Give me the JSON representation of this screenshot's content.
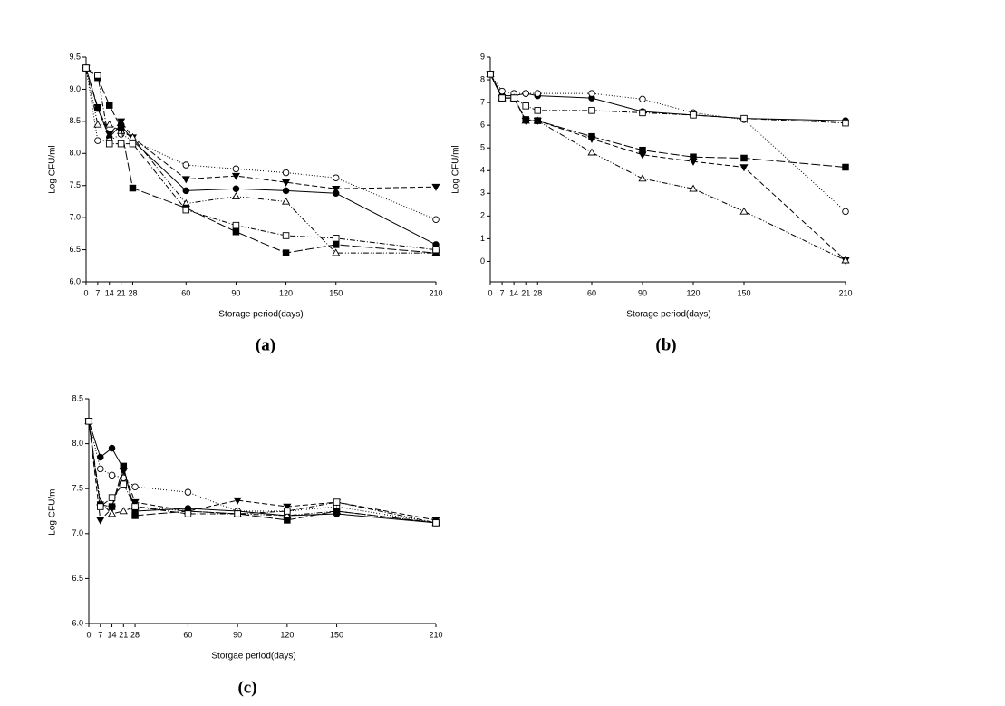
{
  "chart_data": [
    {
      "type": "line",
      "caption": "(a)",
      "xlabel": "Storage period(days)",
      "ylabel": "Log CFU/ml",
      "x": [
        0,
        7,
        14,
        21,
        28,
        60,
        90,
        120,
        150,
        210
      ],
      "xlim": [
        0,
        210
      ],
      "xticks": [
        0,
        7,
        14,
        21,
        28,
        60,
        90,
        120,
        150,
        210
      ],
      "ylim": [
        6,
        9.5
      ],
      "yticks": [
        {
          "value": 6,
          "label": "6.0"
        },
        6.5,
        {
          "value": 7,
          "label": "7.0"
        },
        7.5,
        {
          "value": 8,
          "label": "8.0"
        },
        8.5,
        {
          "value": 9,
          "label": "9.0"
        },
        9.5
      ],
      "series": [
        {
          "color": "#000000",
          "marker": "filled-circle",
          "line_style": "solid",
          "values": [
            9.33,
            8.7,
            8.25,
            8.45,
            8.2,
            7.42,
            7.45,
            7.42,
            7.38,
            6.58
          ]
        },
        {
          "color": "#000000",
          "marker": "open-circle",
          "line_style": "dotted",
          "values": [
            9.33,
            8.2,
            8.2,
            8.3,
            8.2,
            7.82,
            7.76,
            7.7,
            7.62,
            6.97
          ]
        },
        {
          "color": "#000000",
          "marker": "filled-triangle-down",
          "line_style": "dashed",
          "values": [
            9.33,
            8.72,
            8.3,
            8.5,
            8.25,
            7.6,
            7.65,
            7.55,
            7.45,
            7.48
          ]
        },
        {
          "color": "#000000",
          "marker": "open-triangle-up",
          "line_style": "dash-dot-dot",
          "values": [
            9.33,
            8.45,
            8.45,
            8.35,
            8.25,
            7.22,
            7.33,
            7.25,
            6.45,
            6.45
          ]
        },
        {
          "color": "#000000",
          "marker": "filled-square",
          "line_style": "long-dash",
          "values": [
            9.33,
            9.18,
            8.75,
            8.4,
            7.46,
            7.15,
            6.78,
            6.45,
            6.58,
            6.45
          ]
        },
        {
          "color": "#000000",
          "marker": "open-square",
          "line_style": "dash-dot",
          "values": [
            9.33,
            9.22,
            8.15,
            8.15,
            8.15,
            7.12,
            6.88,
            6.72,
            6.68,
            6.5
          ]
        }
      ]
    },
    {
      "type": "line",
      "caption": "(b)",
      "xlabel": "Storage period(days)",
      "ylabel": "Log CFU/ml",
      "x": [
        0,
        7,
        14,
        21,
        28,
        60,
        90,
        120,
        150,
        210
      ],
      "xlim": [
        0,
        210
      ],
      "xticks": [
        0,
        7,
        14,
        21,
        28,
        60,
        90,
        120,
        150,
        210
      ],
      "ylim": [
        -0.9,
        9
      ],
      "yticks": [
        0,
        1,
        2,
        3,
        4,
        5,
        6,
        7,
        8,
        9
      ],
      "series": [
        {
          "color": "#000000",
          "marker": "filled-circle",
          "line_style": "solid",
          "values": [
            8.25,
            7.3,
            7.3,
            7.4,
            7.3,
            7.2,
            6.6,
            6.45,
            6.3,
            6.2
          ]
        },
        {
          "color": "#000000",
          "marker": "open-circle",
          "line_style": "dotted",
          "values": [
            8.25,
            7.5,
            7.4,
            7.4,
            7.4,
            7.4,
            7.15,
            6.55,
            6.25,
            2.2
          ]
        },
        {
          "color": "#000000",
          "marker": "filled-triangle-down",
          "line_style": "dashed",
          "values": [
            8.25,
            7.2,
            7.2,
            6.2,
            6.2,
            5.4,
            4.7,
            4.4,
            4.15,
            0.05
          ]
        },
        {
          "color": "#000000",
          "marker": "open-triangle-up",
          "line_style": "dash-dot-dot",
          "values": [
            8.25,
            7.2,
            7.2,
            6.2,
            6.2,
            4.8,
            3.65,
            3.2,
            2.2,
            0.05
          ]
        },
        {
          "color": "#000000",
          "marker": "filled-square",
          "line_style": "long-dash",
          "values": [
            8.25,
            7.2,
            7.2,
            6.25,
            6.2,
            5.5,
            4.9,
            4.6,
            4.55,
            4.15
          ]
        },
        {
          "color": "#000000",
          "marker": "open-square",
          "line_style": "dash-dot",
          "values": [
            8.25,
            7.2,
            7.2,
            6.85,
            6.65,
            6.65,
            6.55,
            6.45,
            6.3,
            6.1
          ]
        }
      ]
    },
    {
      "type": "line",
      "caption": "(c)",
      "xlabel": "Storgae period(days)",
      "ylabel": "Log CFU/ml",
      "x": [
        0,
        7,
        14,
        21,
        28,
        60,
        90,
        120,
        150,
        210
      ],
      "xlim": [
        0,
        210
      ],
      "xticks": [
        0,
        7,
        14,
        21,
        28,
        60,
        90,
        120,
        150,
        210
      ],
      "ylim": [
        6,
        8.5
      ],
      "yticks": [
        {
          "value": 6,
          "label": "6.0"
        },
        6.5,
        {
          "value": 7,
          "label": "7.0"
        },
        7.5,
        {
          "value": 8,
          "label": "8.0"
        },
        8.5
      ],
      "series": [
        {
          "color": "#000000",
          "marker": "filled-circle",
          "line_style": "solid",
          "values": [
            8.25,
            7.85,
            7.95,
            7.72,
            7.25,
            7.28,
            7.25,
            7.2,
            7.22,
            7.12
          ]
        },
        {
          "color": "#000000",
          "marker": "open-circle",
          "line_style": "dotted",
          "values": [
            8.25,
            7.72,
            7.65,
            7.62,
            7.52,
            7.46,
            7.25,
            7.25,
            7.3,
            7.12
          ]
        },
        {
          "color": "#000000",
          "marker": "filled-triangle-down",
          "line_style": "dashed",
          "values": [
            8.25,
            7.15,
            7.28,
            7.7,
            7.35,
            7.25,
            7.37,
            7.3,
            7.35,
            7.15
          ]
        },
        {
          "color": "#000000",
          "marker": "open-triangle-up",
          "line_style": "dash-dot-dot",
          "values": [
            8.25,
            7.35,
            7.22,
            7.25,
            7.3,
            7.25,
            7.22,
            7.2,
            7.25,
            7.12
          ]
        },
        {
          "color": "#000000",
          "marker": "filled-square",
          "line_style": "long-dash",
          "values": [
            8.25,
            7.32,
            7.3,
            7.75,
            7.2,
            7.25,
            7.22,
            7.15,
            7.25,
            7.12
          ]
        },
        {
          "color": "#000000",
          "marker": "open-square",
          "line_style": "dash-dot",
          "values": [
            8.25,
            7.3,
            7.4,
            7.55,
            7.3,
            7.22,
            7.22,
            7.25,
            7.35,
            7.12
          ]
        }
      ]
    }
  ]
}
